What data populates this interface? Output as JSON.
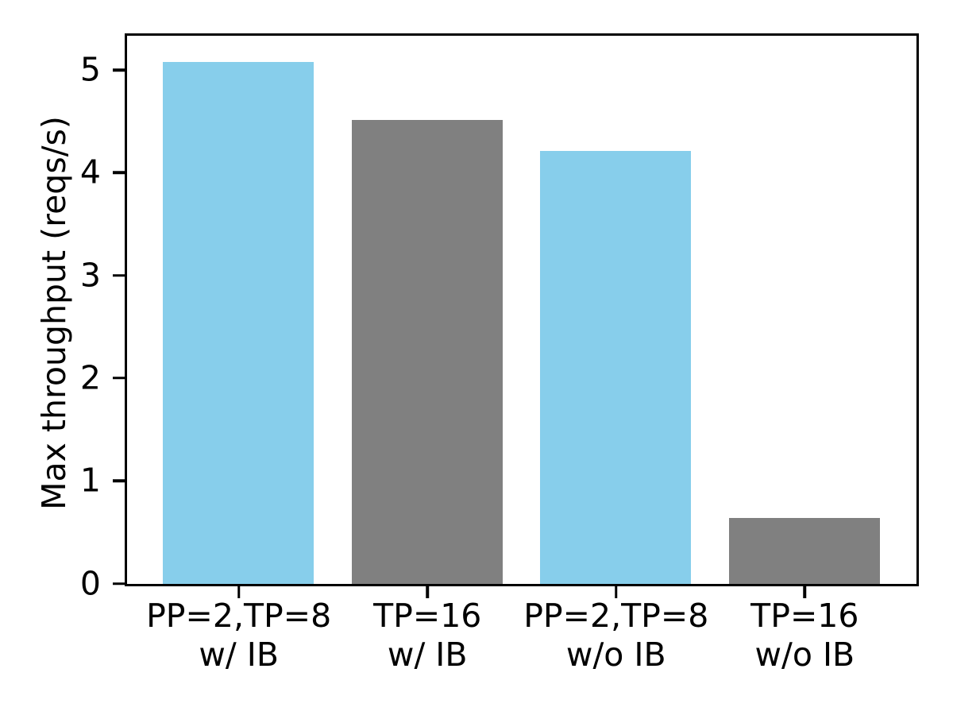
{
  "chart_data": {
    "type": "bar",
    "title": "",
    "xlabel": "",
    "ylabel": "Max throughput (reqs/s)",
    "categories": [
      [
        "PP=2,TP=8",
        "w/ IB"
      ],
      [
        "TP=16",
        "w/ IB"
      ],
      [
        "PP=2,TP=8",
        "w/o IB"
      ],
      [
        "TP=16",
        "w/o IB"
      ]
    ],
    "values": [
      5.08,
      4.52,
      4.22,
      0.64
    ],
    "bar_colors": [
      "#87CEEB",
      "#808080",
      "#87CEEB",
      "#808080"
    ],
    "yticks": [
      0,
      1,
      2,
      3,
      4,
      5
    ],
    "ylim": [
      0,
      5.33
    ],
    "xlim": [
      -0.59,
      3.59
    ],
    "bar_width": 0.8,
    "grid": false,
    "legend_position": "none"
  },
  "colors": {
    "highlight_bar": "#87CEEB",
    "baseline_bar": "#808080",
    "axis": "#000000",
    "background": "#ffffff"
  }
}
